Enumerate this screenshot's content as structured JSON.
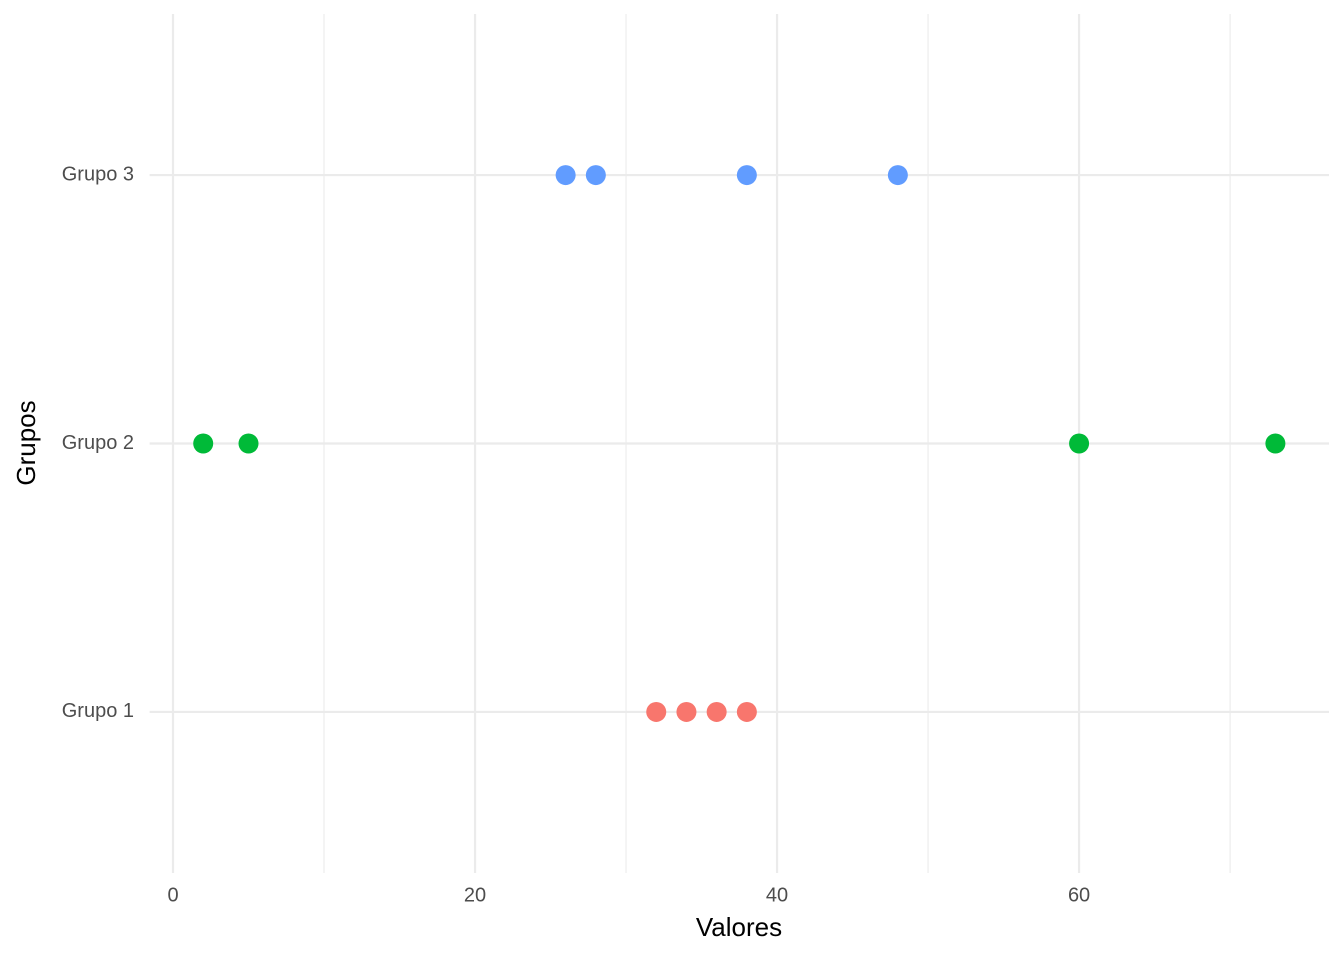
{
  "chart_data": {
    "type": "strip",
    "x_label": "Valores",
    "y_label": "Grupos",
    "categories": [
      "Grupo 1",
      "Grupo 2",
      "Grupo 3"
    ],
    "values": [
      [
        32,
        34,
        36,
        38
      ],
      [
        2,
        5,
        60,
        73
      ],
      [
        26,
        28,
        38,
        48
      ]
    ],
    "colors": [
      "#F8766D",
      "#00BA38",
      "#619CFF"
    ],
    "xlim": [
      -1.55,
      76.55
    ],
    "xticks": [
      0,
      20,
      40,
      60
    ],
    "xminorticks": [
      10,
      30,
      50,
      70
    ],
    "grid": true
  }
}
